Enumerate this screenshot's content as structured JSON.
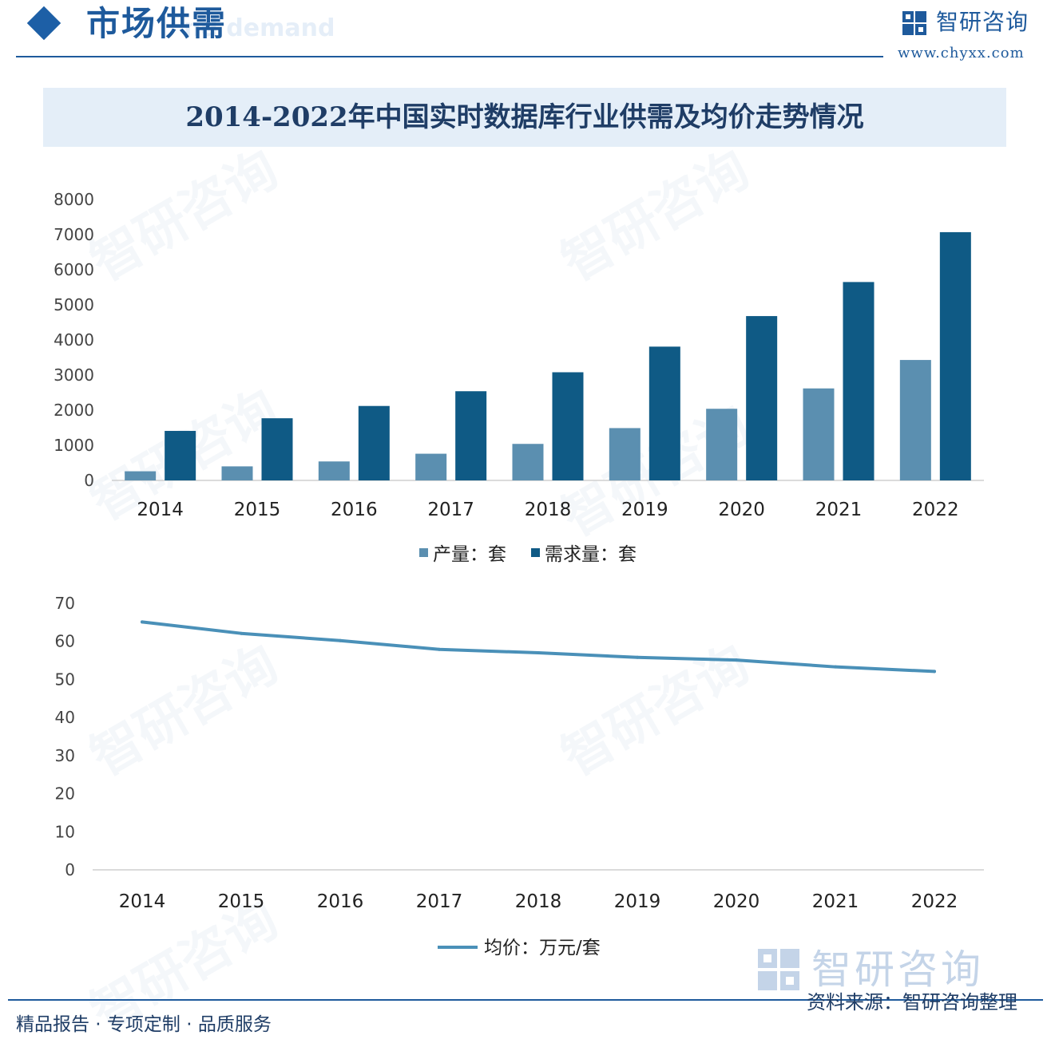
{
  "header": {
    "title": "市场供需",
    "subtitle_bg": "nd demand",
    "brand_name": "智研咨询",
    "brand_url": "www.chyxx.com"
  },
  "chart_title": "2014-2022年中国实时数据库行业供需及均价走势情况",
  "watermark": "智研咨询",
  "colors": {
    "production": "#5b8fb0",
    "demand": "#0f5a85",
    "price": "#4a90b8",
    "brand": "#1e5a9c"
  },
  "chart_data": [
    {
      "type": "bar",
      "categories": [
        "2014",
        "2015",
        "2016",
        "2017",
        "2018",
        "2019",
        "2020",
        "2021",
        "2022"
      ],
      "series": [
        {
          "name": "产量：套",
          "values": [
            260,
            400,
            540,
            760,
            1040,
            1490,
            2040,
            2620,
            3430
          ]
        },
        {
          "name": "需求量：套",
          "values": [
            1410,
            1770,
            2120,
            2540,
            3080,
            3810,
            4680,
            5650,
            7070
          ]
        }
      ],
      "ylim": [
        0,
        8000
      ],
      "yticks": [
        "0",
        "1000",
        "2000",
        "3000",
        "4000",
        "5000",
        "6000",
        "7000",
        "8000"
      ],
      "grid": false,
      "legend": "bottom"
    },
    {
      "type": "line",
      "categories": [
        "2014",
        "2015",
        "2016",
        "2017",
        "2018",
        "2019",
        "2020",
        "2021",
        "2022"
      ],
      "series": [
        {
          "name": "均价：万元/套",
          "values": [
            65.1,
            62.1,
            60.2,
            57.9,
            57.0,
            55.8,
            55.1,
            53.3,
            52.1
          ]
        }
      ],
      "ylim": [
        0,
        70
      ],
      "yticks": [
        "0",
        "10",
        "20",
        "30",
        "40",
        "50",
        "60",
        "70"
      ],
      "grid": false,
      "legend": "bottom"
    }
  ],
  "footer": {
    "left_text": "精品报告 · 专项定制 · 品质服务",
    "source": "资料来源：智研咨询整理",
    "brand_name": "智研咨询"
  }
}
